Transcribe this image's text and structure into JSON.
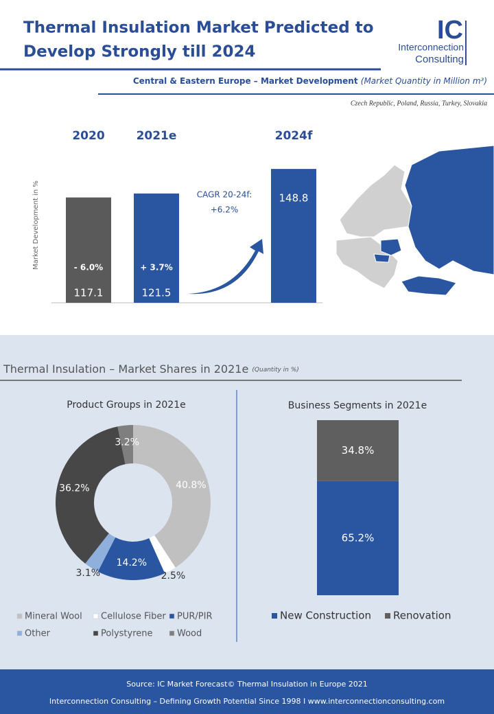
{
  "header": {
    "title_lines": [
      "Thermal Insulation Market Predicted to",
      "Develop Strongly till 2024"
    ],
    "logo": {
      "mark": "IC",
      "line1": "Interconnection",
      "line2": "Consulting"
    }
  },
  "market_development": {
    "heading": "Central & Eastern Europe – Market Development",
    "heading_note": "(Market Quantity in Million m³)",
    "countries": "Czech Republic, Poland, Russia, Turkey, Slovakia"
  },
  "shares_section": {
    "heading": "Thermal Insulation – Market Shares in 2021e",
    "heading_note": "(Quantity in %)"
  },
  "chart_data": [
    {
      "type": "bar",
      "y_label": "Market Development in %",
      "categories": [
        "2020",
        "2021e",
        "2024f"
      ],
      "values": [
        117.1,
        121.5,
        148.8
      ],
      "colors": [
        "#5a5a5a",
        "#2a55a0",
        "#2a55a0"
      ],
      "ylim": [
        0,
        150
      ],
      "change_labels": [
        "- 6.0%",
        "+ 3.7%"
      ],
      "cagr_label": "CAGR 20-24f:",
      "cagr_value": "+6.2%"
    },
    {
      "type": "donut",
      "title": "Product Groups in 2021e",
      "categories": [
        "Mineral Wool",
        "Cellulose Fiber",
        "PUR/PIR",
        "Other",
        "Polystyrene",
        "Wood"
      ],
      "values": [
        40.8,
        2.5,
        14.2,
        3.1,
        36.2,
        3.2
      ],
      "value_labels": [
        "40.8%",
        "2.5%",
        "14.2%",
        "3.1%",
        "36.2%",
        "3.2%"
      ],
      "colors": [
        "#c0c0c0",
        "#ffffff",
        "#2a55a0",
        "#8fb0dc",
        "#474747",
        "#7f7f7f"
      ]
    },
    {
      "type": "stacked-bar",
      "title": "Business Segments in 2021e",
      "ylim": [
        0,
        100
      ],
      "series": [
        {
          "name": "New Construction",
          "color": "#2a55a0",
          "values": [
            65.2
          ],
          "value_labels": [
            "65.2%"
          ]
        },
        {
          "name": "Renovation",
          "color": "#5f5f5f",
          "values": [
            34.8
          ],
          "value_labels": [
            "34.8%"
          ]
        }
      ]
    }
  ],
  "footer": {
    "source": "Source: IC Market Forecast© Thermal Insulation in Europe 2021",
    "tagline": "Interconnection Consulting – Defining Growth Potential Since 1998 I www.interconnectionconsulting.com"
  }
}
